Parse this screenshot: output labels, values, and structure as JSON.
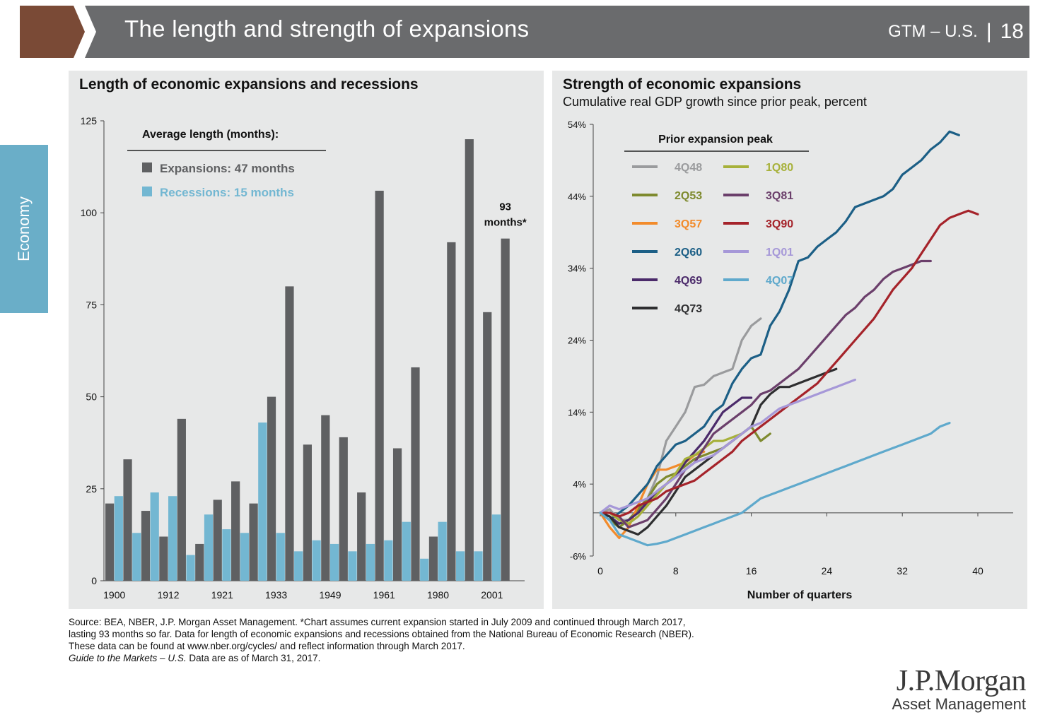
{
  "header": {
    "title": "The length and strength of expansions",
    "section": "GTM – U.S.",
    "separator": "|",
    "page": "18",
    "accent_color": "#7a4a36",
    "bar_color": "#6a6b6d"
  },
  "side_tab": {
    "label": "Economy",
    "color": "#6aaec8"
  },
  "footer": {
    "line1": "Source: BEA, NBER, J.P. Morgan Asset Management. *Chart assumes current expansion started in July 2009 and continued through March 2017,",
    "line2": "lasting 93 months so far. Data for length of economic expansions and recessions obtained from the National Bureau of Economic Research (NBER).",
    "line3": "These data can be found at www.nber.org/cycles/ and reflect information through March 2017.",
    "line4_italic": "Guide to the Markets – U.S.",
    "line4_rest": " Data are as of March 31, 2017."
  },
  "logo": {
    "line1": "J.P.Morgan",
    "line2": "Asset Management"
  },
  "chart_data": [
    {
      "type": "bar",
      "title": "Length of economic expansions and recessions",
      "ylim": [
        0,
        125
      ],
      "yticks": [
        0,
        25,
        50,
        75,
        100,
        125
      ],
      "xtick_labels": [
        "1900",
        "1912",
        "1921",
        "1933",
        "1949",
        "1961",
        "1980",
        "2001"
      ],
      "legend_title": "Average length (months):",
      "series": [
        {
          "name": "Expansions: 47 months",
          "color": "#5f6062",
          "values": [
            21,
            33,
            19,
            12,
            44,
            10,
            22,
            27,
            21,
            50,
            80,
            37,
            45,
            39,
            24,
            106,
            36,
            58,
            12,
            92,
            120,
            73,
            93
          ]
        },
        {
          "name": "Recessions: 15 months",
          "color": "#73b7d2",
          "values": [
            23,
            13,
            24,
            23,
            7,
            18,
            14,
            13,
            43,
            13,
            8,
            11,
            10,
            8,
            10,
            11,
            16,
            6,
            16,
            8,
            8,
            18,
            null
          ]
        }
      ],
      "annotation": {
        "line1": "93",
        "line2": "months*"
      }
    },
    {
      "type": "line",
      "title": "Strength of economic expansions",
      "subtitle": "Cumulative real GDP growth since prior peak, percent",
      "xlabel": "Number of quarters",
      "xlim": [
        0,
        43
      ],
      "xticks": [
        0,
        8,
        16,
        24,
        32,
        40
      ],
      "ylim": [
        -6,
        54
      ],
      "yticks": [
        -6,
        4,
        14,
        24,
        34,
        44,
        54
      ],
      "ytick_labels": [
        "-6%",
        "4%",
        "14%",
        "24%",
        "34%",
        "44%",
        "54%"
      ],
      "legend_title": "Prior expansion peak",
      "series": [
        {
          "name": "4Q48",
          "color": "#9a9b9d",
          "values": [
            0,
            0.5,
            -1,
            -1,
            0,
            2,
            5,
            10,
            12,
            14,
            17.5,
            17.8,
            19,
            19.5,
            20,
            24,
            26,
            27
          ]
        },
        {
          "name": "2Q53",
          "color": "#7e8a2e",
          "values": [
            0,
            -1,
            -2,
            -1,
            0.5,
            2,
            4,
            5,
            5.5,
            6.5,
            7.5,
            8,
            8.5,
            9,
            10,
            11,
            12,
            10,
            11
          ]
        },
        {
          "name": "3Q57",
          "color": "#f28b2b",
          "values": [
            0,
            -2,
            -3.5,
            -2,
            1,
            4,
            6,
            6,
            6.5,
            7,
            8,
            8.5
          ]
        },
        {
          "name": "2Q60",
          "color": "#1c5f86",
          "values": [
            0,
            -1,
            0,
            1,
            2.5,
            4,
            6.5,
            8,
            9.5,
            10,
            11,
            12,
            14,
            15,
            18,
            20,
            21.5,
            22,
            26,
            28,
            31,
            35,
            35.5,
            37,
            38,
            39,
            40.5,
            42.5,
            43,
            43.5,
            44,
            45,
            47,
            48,
            49,
            50.5,
            51.5,
            53,
            52.5
          ]
        },
        {
          "name": "4Q69",
          "color": "#4b2a6a",
          "values": [
            0,
            -0.5,
            -1.5,
            -1,
            0,
            1.5,
            3,
            4,
            5,
            7,
            8.5,
            10,
            12,
            14,
            15,
            16,
            16
          ]
        },
        {
          "name": "4Q73",
          "color": "#2e2e30",
          "values": [
            0,
            -0.5,
            -2,
            -2.5,
            -3,
            -2,
            -0.5,
            1,
            3,
            5,
            6,
            7,
            8,
            9,
            10,
            11,
            12,
            15,
            16.5,
            17.5,
            17.5,
            18,
            18.5,
            19,
            19.5,
            20
          ]
        },
        {
          "name": "1Q80",
          "color": "#a7b13a",
          "values": [
            0,
            0,
            -1,
            -1.5,
            -0.5,
            1,
            2.5,
            4,
            5.5,
            7.5,
            8,
            9,
            10,
            10,
            10.5,
            11
          ]
        },
        {
          "name": "3Q81",
          "color": "#6b3f6b",
          "values": [
            0,
            0,
            -0.5,
            -2,
            -1.5,
            -1,
            0.5,
            2,
            4,
            6,
            7,
            9,
            11,
            12,
            13,
            14,
            15,
            16.5,
            17,
            18,
            19,
            20,
            21.5,
            23,
            24.5,
            26,
            27.5,
            28.5,
            30,
            31,
            32.5,
            33.5,
            34,
            34.5,
            35,
            35
          ]
        },
        {
          "name": "3Q90",
          "color": "#a5232a",
          "values": [
            0,
            0,
            -0.5,
            0,
            1,
            1.5,
            2,
            3,
            3.5,
            4,
            4.5,
            5.5,
            6.5,
            7.5,
            8.5,
            10,
            11,
            12,
            13,
            14,
            15,
            16,
            17,
            18,
            19.5,
            21,
            22.5,
            24,
            25.5,
            27,
            29,
            31,
            32.5,
            34,
            36,
            38,
            40,
            41,
            41.5,
            42,
            41.5
          ]
        },
        {
          "name": "1Q01",
          "color": "#a698d8",
          "values": [
            0,
            1,
            0.5,
            1,
            1.5,
            2,
            3,
            4,
            5,
            6,
            7,
            7.5,
            8,
            9,
            10,
            11,
            12,
            12.5,
            13.5,
            14.5,
            15,
            15.5,
            16,
            16.5,
            17,
            17.5,
            18,
            18.5
          ]
        },
        {
          "name": "4Q07",
          "color": "#5fa9cc",
          "values": [
            0,
            -1,
            -3,
            -3.5,
            -4,
            -4.5,
            -4.3,
            -4,
            -3.5,
            -3,
            -2.5,
            -2,
            -1.5,
            -1,
            -0.5,
            0,
            1,
            2,
            2.5,
            3,
            3.5,
            4,
            4.5,
            5,
            5.5,
            6,
            6.5,
            7,
            7.5,
            8,
            8.5,
            9,
            9.5,
            10,
            10.5,
            11,
            12,
            12.5
          ]
        }
      ]
    }
  ]
}
